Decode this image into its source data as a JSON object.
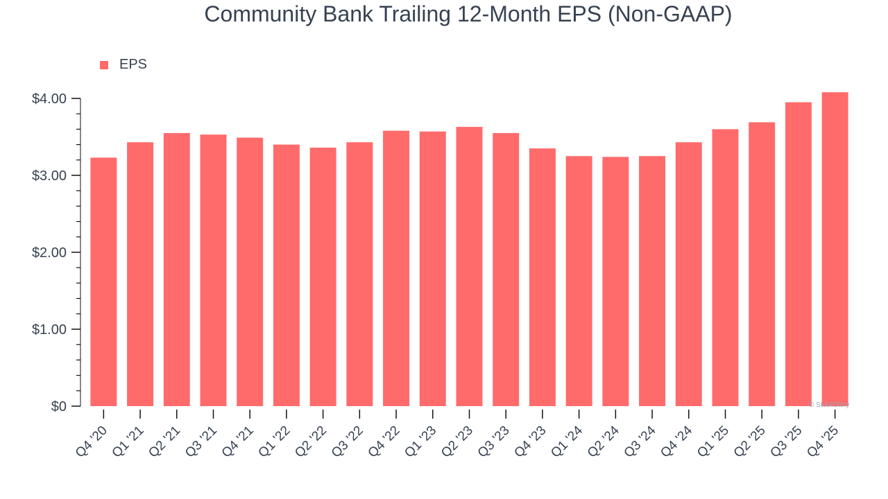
{
  "chart_data": {
    "type": "bar",
    "title": "Community Bank Trailing 12-Month EPS (Non-GAAP)",
    "xlabel": "",
    "ylabel": "",
    "categories": [
      "Q4 '20",
      "Q1 '21",
      "Q2 '21",
      "Q3 '21",
      "Q4 '21",
      "Q1 '22",
      "Q2 '22",
      "Q3 '22",
      "Q4 '22",
      "Q1 '23",
      "Q2 '23",
      "Q3 '23",
      "Q4 '23",
      "Q1 '24",
      "Q2 '24",
      "Q3 '24",
      "Q4 '24",
      "Q1 '25",
      "Q2 '25",
      "Q3 '25",
      "Q4 '25"
    ],
    "series": [
      {
        "name": "EPS",
        "color": "#ff6b6b",
        "values": [
          3.23,
          3.43,
          3.55,
          3.53,
          3.49,
          3.4,
          3.36,
          3.43,
          3.58,
          3.57,
          3.63,
          3.55,
          3.35,
          3.25,
          3.24,
          3.25,
          3.43,
          3.6,
          3.69,
          3.95,
          4.08
        ]
      }
    ],
    "ylim": [
      0,
      4.0
    ],
    "yticks": [
      0,
      1,
      2,
      3,
      4
    ],
    "ytick_labels": [
      "$0",
      "$1.00",
      "$2.00",
      "$3.00",
      "$4.00"
    ],
    "legend_position": "top-left",
    "grid": false
  },
  "watermark": "© StockStory",
  "colors": {
    "bar": "#ff6b6b",
    "text": "#374151",
    "axis": "#111111"
  }
}
